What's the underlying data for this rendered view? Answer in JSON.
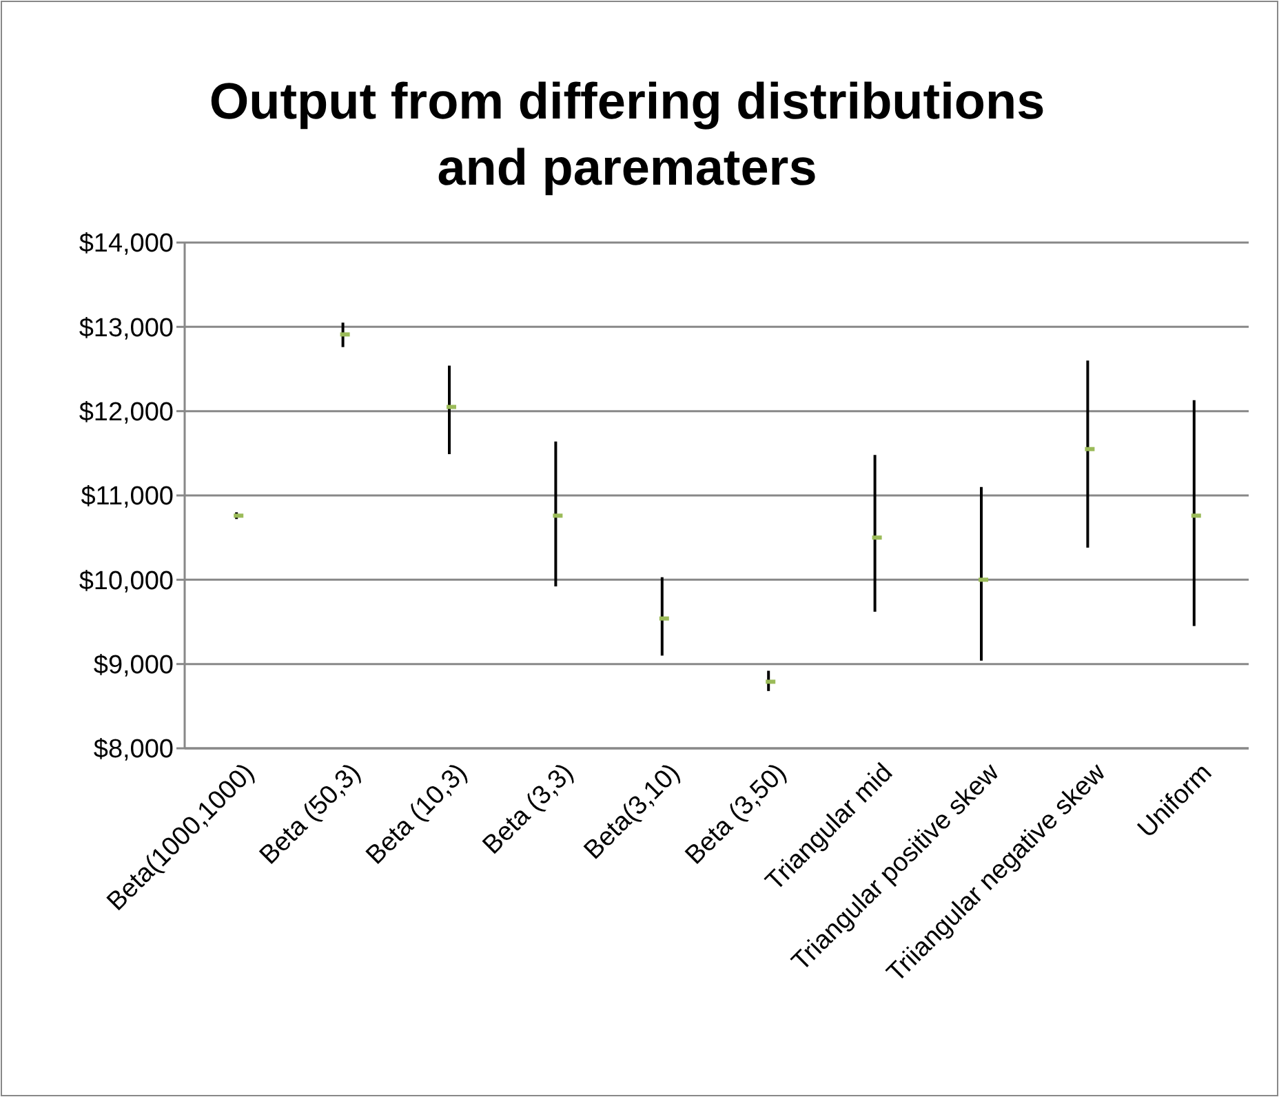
{
  "chart_data": {
    "type": "scatter",
    "title": "Output from differing distributions and parematers",
    "categories": [
      "Beta(1000,1000)",
      "Beta (50,3)",
      "Beta (10,3)",
      "Beta (3,3)",
      "Beta(3,10)",
      "Beta (3,50)",
      "Triangular mid",
      "Triangular positive skew",
      "Triiangular negative skew",
      "Uniform"
    ],
    "series": [
      {
        "color": "#9bbb59",
        "values": [
          10760,
          12910,
          12050,
          10760,
          9540,
          8790,
          10500,
          10000,
          11550,
          10760
        ],
        "errors": [
          [
            10720,
            10800
          ],
          [
            12760,
            13050
          ],
          [
            11490,
            12540
          ],
          [
            9920,
            11640
          ],
          [
            9100,
            10030
          ],
          [
            8680,
            8920
          ],
          [
            9620,
            11480
          ],
          [
            9040,
            11100
          ],
          [
            10380,
            12600
          ],
          [
            9450,
            12130
          ]
        ]
      }
    ],
    "ylim": [
      8000,
      14000
    ],
    "yticks": [
      {
        "value": 8000,
        "label": "$8,000"
      },
      {
        "value": 9000,
        "label": "$9,000"
      },
      {
        "value": 10000,
        "label": "$10,000"
      },
      {
        "value": 11000,
        "label": "$11,000"
      },
      {
        "value": 12000,
        "label": "$12,000"
      },
      {
        "value": 13000,
        "label": "$13,000"
      },
      {
        "value": 14000,
        "label": "$14,000"
      }
    ],
    "grid": "y",
    "marker": "square"
  }
}
